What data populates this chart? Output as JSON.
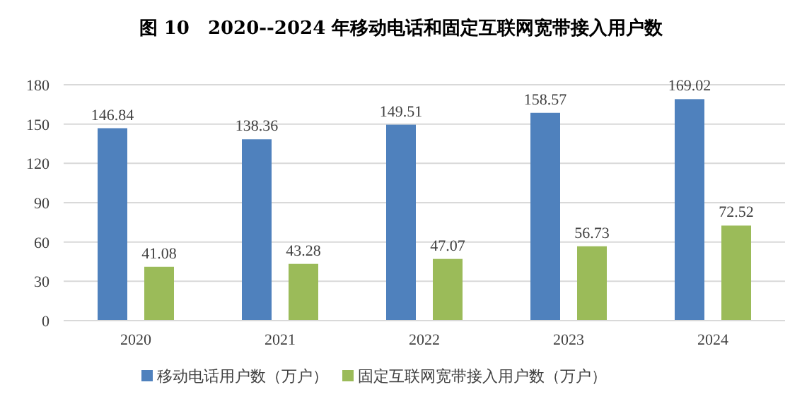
{
  "chart_data": {
    "type": "bar",
    "title": "图 10　2020--2024 年移动电话和固定互联网宽带接入用户数",
    "categories": [
      "2020",
      "2021",
      "2022",
      "2023",
      "2024"
    ],
    "series": [
      {
        "name": "移动电话用户数（万户）",
        "color": "#4f81bd",
        "values": [
          146.84,
          138.36,
          149.51,
          158.57,
          169.02
        ]
      },
      {
        "name": "固定互联网宽带接入用户数（万户）",
        "color": "#9bbb59",
        "values": [
          41.08,
          43.28,
          47.07,
          56.73,
          72.52
        ]
      }
    ],
    "ylim": [
      0,
      180
    ],
    "yticks": [
      0,
      30,
      60,
      90,
      120,
      150,
      180
    ],
    "grid": "y",
    "legend": "bottom",
    "data_labels": true
  }
}
